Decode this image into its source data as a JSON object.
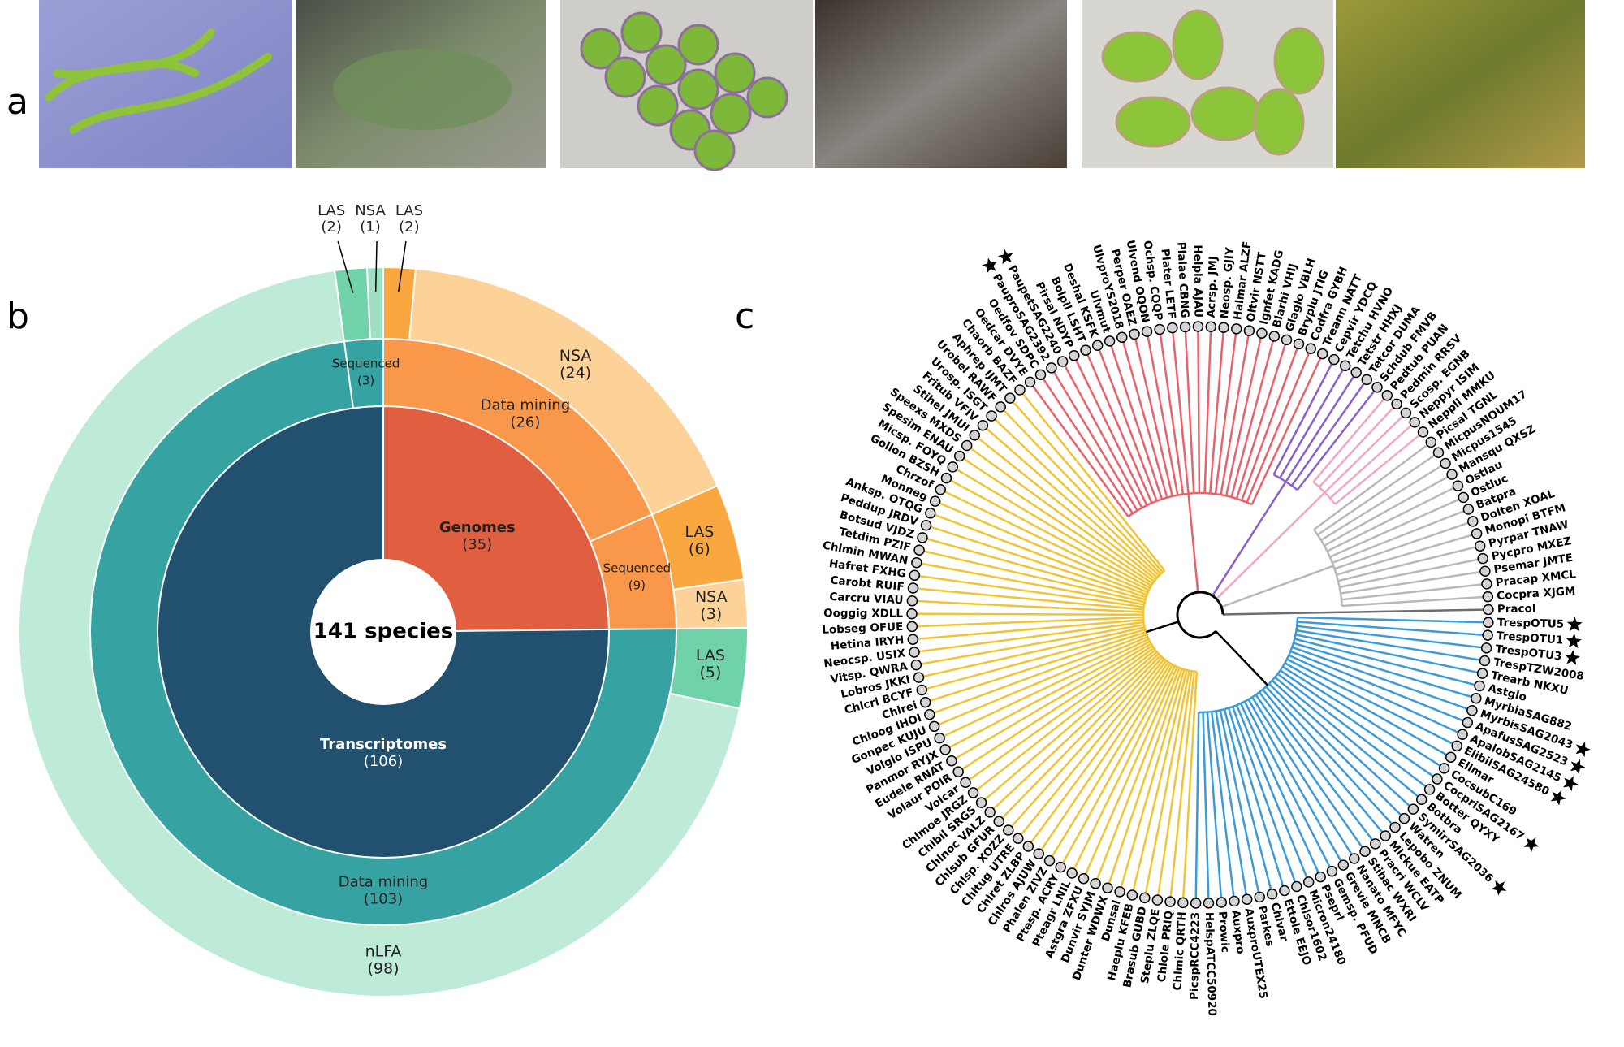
{
  "panel_labels": [
    "a",
    "b",
    "c"
  ],
  "chart_data": {
    "type": "sunburst",
    "center_label": "141 species",
    "nodes": [
      {
        "name": "Genomes",
        "value": 35,
        "value_label": "(35)",
        "color": "#e15f41",
        "children": [
          {
            "name": "Data mining",
            "value": 26,
            "value_label": "(26)",
            "color": "#f9974a",
            "children": [
              {
                "name": "LAS",
                "value": 2,
                "value_label": "(2)",
                "color": "#fba740"
              },
              {
                "name": "NSA",
                "value": 24,
                "value_label": "(24)",
                "color": "#fdd298"
              }
            ]
          },
          {
            "name": "Sequenced",
            "value": 9,
            "value_label": "(9)",
            "color": "#f9974a",
            "children": [
              {
                "name": "LAS",
                "value": 6,
                "value_label": "(6)",
                "color": "#fba740"
              },
              {
                "name": "NSA",
                "value": 3,
                "value_label": "(3)",
                "color": "#fdd298"
              }
            ]
          }
        ]
      },
      {
        "name": "Transcriptomes",
        "value": 106,
        "value_label": "(106)",
        "color": "#22506f",
        "children": [
          {
            "name": "Data mining",
            "value": 103,
            "value_label": "(103)",
            "color": "#36a2a2",
            "children": [
              {
                "name": "LAS",
                "value": 5,
                "value_label": "(5)",
                "color": "#6fd2a9"
              },
              {
                "name": "nLFA",
                "value": 98,
                "value_label": "(98)",
                "color": "#bdebd7"
              }
            ]
          },
          {
            "name": "Sequenced",
            "value": 3,
            "value_label": "(3)",
            "color": "#36a2a2",
            "children": [
              {
                "name": "LAS",
                "value": 2,
                "value_label": "(2)",
                "color": "#6fd2a9"
              },
              {
                "name": "NSA",
                "value": 1,
                "value_label": "(1)",
                "color": "#9fe0c4"
              }
            ]
          }
        ]
      }
    ]
  },
  "tree": {
    "clades": [
      {
        "color": "#3d9ad8",
        "leaves": [
          {
            "label": "TrespOTU5",
            "star": true
          },
          {
            "label": "TrespOTU1",
            "star": true
          },
          {
            "label": "TrespOTU3",
            "star": true
          },
          {
            "label": "TrespTZW2008"
          },
          {
            "label": "Trearb NKXU"
          },
          {
            "label": "Astglo"
          },
          {
            "label": "MyrbiaSAG882"
          },
          {
            "label": "MyrbisSAG2043",
            "star": true
          },
          {
            "label": "ApafusSAG2523",
            "star": true
          },
          {
            "label": "ApalobSAG2145",
            "star": true
          },
          {
            "label": "ElibilSAG24580",
            "star": true
          },
          {
            "label": "Ellmar"
          },
          {
            "label": "CocsubC169"
          },
          {
            "label": "CocpriSAG2167",
            "star": true
          },
          {
            "label": "Botter QYXY"
          },
          {
            "label": "Botbra"
          },
          {
            "label": "SymirrSAG2036",
            "star": true
          },
          {
            "label": "Watren"
          },
          {
            "label": "Lepobo ZNUM"
          },
          {
            "label": "Mickue EATP"
          },
          {
            "label": "Pracri WCLV"
          },
          {
            "label": "Stibac WXRI"
          },
          {
            "label": "Nanato MFYC"
          },
          {
            "label": "Grevie MNCB"
          },
          {
            "label": "Gemsp. PFUD"
          },
          {
            "label": "Pseprl"
          },
          {
            "label": "Micron24180"
          },
          {
            "label": "Chlsor1602"
          },
          {
            "label": "Ettole EEJO"
          },
          {
            "label": "Chlvar"
          },
          {
            "label": "Parkes"
          },
          {
            "label": "AuxproUTEX25"
          },
          {
            "label": "Auxpro"
          },
          {
            "label": "Prowic"
          },
          {
            "label": "HelspATCC50920"
          },
          {
            "label": "PicspRCC4223"
          }
        ]
      },
      {
        "color": "#f0c435",
        "leaves": [
          {
            "label": "Chlmic QRTH"
          },
          {
            "label": "Chlole PRIQ"
          },
          {
            "label": "Steplu ZLQE"
          },
          {
            "label": "Brasub GUBD"
          },
          {
            "label": "Haeplu KFEB"
          },
          {
            "label": "Dunsal"
          },
          {
            "label": "Dunter WDWX"
          },
          {
            "label": "Dunvir SYJM"
          },
          {
            "label": "Astgra ZFXU"
          },
          {
            "label": "Pteagr LNIL"
          },
          {
            "label": "Ptesp. ACRY"
          },
          {
            "label": "Phalen ZIVZ"
          },
          {
            "label": "Chlros AJUW"
          },
          {
            "label": "Chlret ZLBP"
          },
          {
            "label": "Chltug UTRE"
          },
          {
            "label": "Chlsp. XOZZ"
          },
          {
            "label": "Chlsub GFUR"
          },
          {
            "label": "Chlnoc VALZ"
          },
          {
            "label": "Chlbil SRGS"
          },
          {
            "label": "Chlmoe JRGZ"
          },
          {
            "label": "Volcar"
          },
          {
            "label": "Volaur POIR"
          },
          {
            "label": "Eudele RNAT"
          },
          {
            "label": "Panmor RYJX"
          },
          {
            "label": "Volglo ISPU"
          },
          {
            "label": "Gonpec KUJU"
          },
          {
            "label": "Chloog IHOI"
          },
          {
            "label": "Chlrei"
          },
          {
            "label": "Chlcri BCYF"
          },
          {
            "label": "Lobros JKKI"
          },
          {
            "label": "Vitsp. QWRA"
          },
          {
            "label": "Neocsp. USIX"
          },
          {
            "label": "Hetina IRYH"
          },
          {
            "label": "Lobseg OFUE"
          },
          {
            "label": "Ooggig XDLL"
          },
          {
            "label": "Carcru VIAU"
          },
          {
            "label": "Carobt RUIF"
          },
          {
            "label": "Hafret FXHG"
          },
          {
            "label": "Chlmin MWAN"
          },
          {
            "label": "Tetdim PZIF"
          },
          {
            "label": "Botsud VJDZ"
          },
          {
            "label": "Peddup JRDV"
          },
          {
            "label": "Anksp. OTQG"
          },
          {
            "label": "Monneg"
          },
          {
            "label": "Chrzof"
          },
          {
            "label": "Gollon BZSH"
          },
          {
            "label": "Micsp. FOYQ"
          },
          {
            "label": "Spesim ENAU"
          },
          {
            "label": "Speexs MXDS"
          },
          {
            "label": "Stihel JMUI"
          },
          {
            "label": "Fritub VFIV"
          },
          {
            "label": "Urosp. ISGT"
          },
          {
            "label": "Urobel RAWF"
          },
          {
            "label": "Aphrep IJMT"
          },
          {
            "label": "Chaorb BAZF"
          }
        ]
      },
      {
        "color": "#e8626a",
        "leaves": [
          {
            "label": "Oedcar DVYE"
          },
          {
            "label": "Oedfov SDPC"
          },
          {
            "label": "PauproSAG2392",
            "star": true
          },
          {
            "label": "PaupetSAG2240",
            "star": true
          },
          {
            "label": "Pirsal NDYP"
          },
          {
            "label": "Bolpil LSHT"
          },
          {
            "label": "Deshal KSFK"
          },
          {
            "label": "Ulvmut"
          },
          {
            "label": "UlvproYS2018"
          },
          {
            "label": "Perper OAEZ"
          },
          {
            "label": "Ulvend OQON"
          },
          {
            "label": "Ochsp. CQQP"
          },
          {
            "label": "Plater LETF"
          },
          {
            "label": "Plalae CBNG"
          },
          {
            "label": "Helpla AJAU"
          },
          {
            "label": "Acrsp. JMJ"
          },
          {
            "label": "Neosp. GJIY"
          },
          {
            "label": "Halmar ALZF"
          },
          {
            "label": "Oltvir NSTT"
          },
          {
            "label": "Ignfet KADG"
          },
          {
            "label": "Blarhi VHIJ"
          },
          {
            "label": "Glaglo VBLH"
          },
          {
            "label": "Bryplu JTIG"
          },
          {
            "label": "Codfra GYBH"
          },
          {
            "label": "Treann NATT"
          }
        ]
      },
      {
        "color": "#8a5ed0",
        "leaves": [
          {
            "label": "Cepvir YDCQ"
          },
          {
            "label": "Tetchu HVNO"
          },
          {
            "label": "Tetstr HHXJ"
          },
          {
            "label": "Tetcor DUMA"
          },
          {
            "label": "Schdub FMVB"
          }
        ]
      },
      {
        "color": "#f1a6c4",
        "leaves": [
          {
            "label": "Pedtub PUAN"
          },
          {
            "label": "Pedmin RRSV"
          },
          {
            "label": "Scosp. EGNB"
          },
          {
            "label": "Neppyr ISIM"
          },
          {
            "label": "Neppli MMKU"
          }
        ]
      },
      {
        "color": "#b8b8b8",
        "leaves": [
          {
            "label": "Picsal TGNL"
          },
          {
            "label": "MicpusNOUM17"
          },
          {
            "label": "Micpus1545"
          },
          {
            "label": "Mansqu QXSZ"
          },
          {
            "label": "Ostlau"
          },
          {
            "label": "Ostluc"
          },
          {
            "label": "Batpra"
          },
          {
            "label": "Dolten XOAL"
          },
          {
            "label": "Monopi BTFM"
          },
          {
            "label": "Pyrpar TNAW"
          },
          {
            "label": "Pycpro MXEZ"
          },
          {
            "label": "Psemar JMTE"
          },
          {
            "label": "Pracap XMCL"
          },
          {
            "label": "Cocpra XJGM"
          }
        ]
      },
      {
        "color": "#6e6e6e",
        "leaves": [
          {
            "label": "Pracol"
          }
        ]
      }
    ]
  }
}
